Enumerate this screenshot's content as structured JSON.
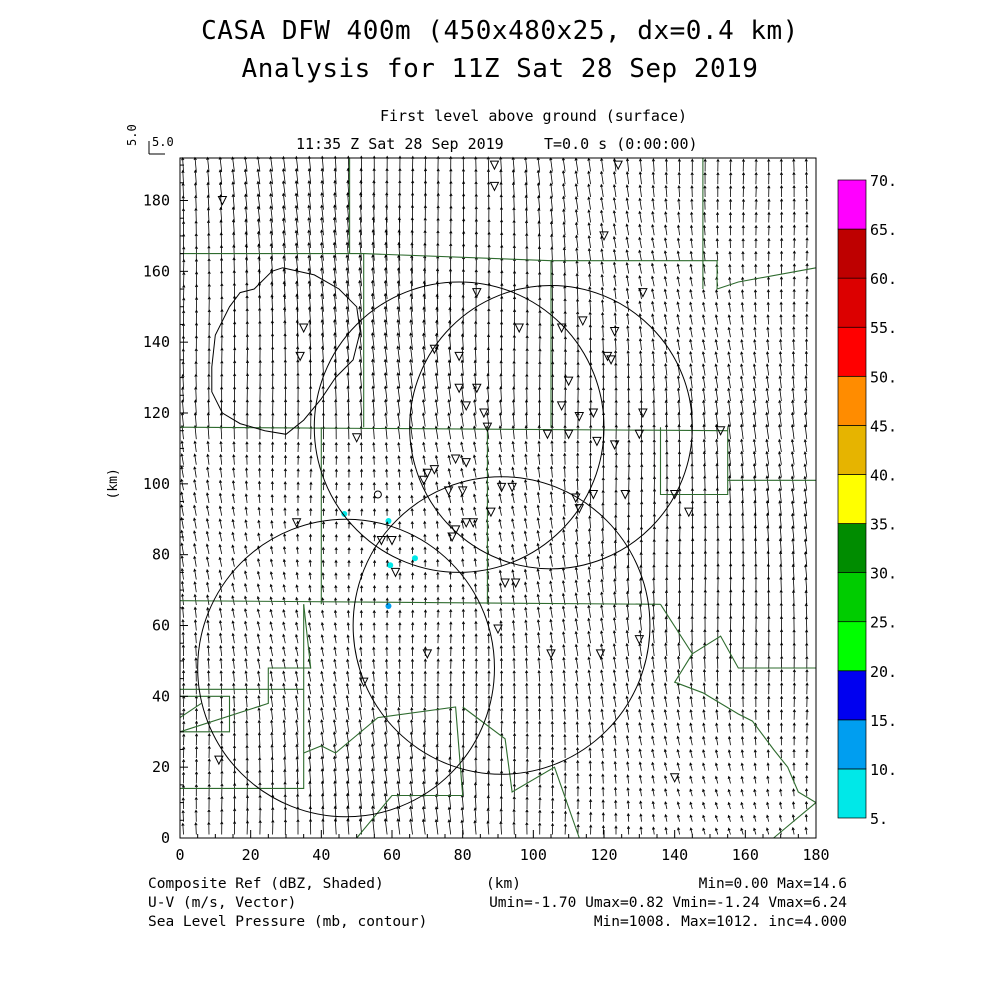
{
  "header": {
    "title_line1": "CASA DFW 400m (450x480x25, dx=0.4 km)",
    "title_line2": "Analysis for 11Z Sat 28 Sep 2019",
    "level": "First level above ground (surface)",
    "valid_time": "11:35 Z Sat 28 Sep 2019",
    "forecast_time": "T=0.0 s (0:00:00)",
    "ref_vector_label": "5.0",
    "ref_vector_label_vertical": "5.0"
  },
  "footer": {
    "field1_label": "Composite Ref (dBZ, Shaded)",
    "field1_stats": "Min=0.00 Max=14.6",
    "field2_label": "U-V (m/s, Vector)",
    "field2_stats": "Umin=-1.70 Umax=0.82 Vmin=-1.24 Vmax=6.24",
    "field3_label": "Sea Level Pressure (mb, contour)",
    "field3_stats": "Min=1008. Max=1012. inc=4.000",
    "x_unit_label": "(km)"
  },
  "chart_data": {
    "type": "map",
    "xlabel": "(km)",
    "ylabel": "(km)",
    "xlim": [
      0,
      180
    ],
    "ylim": [
      0,
      192
    ],
    "x_ticks": [
      0,
      20,
      40,
      60,
      80,
      100,
      120,
      140,
      160,
      180
    ],
    "y_ticks": [
      0,
      20,
      40,
      60,
      80,
      100,
      120,
      140,
      160,
      180
    ],
    "colorbar": {
      "label_values": [
        "5.",
        "10.",
        "15.",
        "20.",
        "25.",
        "30.",
        "35.",
        "40.",
        "45.",
        "50.",
        "55.",
        "60.",
        "65.",
        "70."
      ],
      "colors": [
        "#00e8e8",
        "#009ef0",
        "#0000f0",
        "#00ff00",
        "#00cc00",
        "#008c00",
        "#ffff00",
        "#e6b400",
        "#ff8c00",
        "#ff0000",
        "#dc0000",
        "#be0000",
        "#ff00ff"
      ]
    },
    "wind_field": {
      "description_free": true,
      "dominant_direction": "southerly",
      "spacing_km": 3.6
    },
    "radar_echoes": [
      {
        "x": 46.5,
        "y": 91.5,
        "dbz": 7
      },
      {
        "x": 59.0,
        "y": 89.5,
        "dbz": 9
      },
      {
        "x": 59.5,
        "y": 77.0,
        "dbz": 8
      },
      {
        "x": 66.5,
        "y": 79.0,
        "dbz": 8
      },
      {
        "x": 59.0,
        "y": 65.5,
        "dbz": 10
      }
    ],
    "radar_range_rings": [
      {
        "x": 79,
        "y": 116,
        "r": 41
      },
      {
        "x": 105,
        "y": 116,
        "r": 40
      },
      {
        "x": 91,
        "y": 60,
        "r": 42
      },
      {
        "x": 47,
        "y": 48,
        "r": 42
      }
    ],
    "stations": [
      [
        89,
        190
      ],
      [
        89,
        184
      ],
      [
        124,
        190
      ],
      [
        12,
        180
      ],
      [
        120,
        170
      ],
      [
        84,
        154
      ],
      [
        131,
        154
      ],
      [
        108,
        144
      ],
      [
        114,
        146
      ],
      [
        123,
        143
      ],
      [
        35,
        144
      ],
      [
        34,
        136
      ],
      [
        96,
        144
      ],
      [
        72,
        138
      ],
      [
        79,
        136
      ],
      [
        121,
        136
      ],
      [
        110,
        129
      ],
      [
        122,
        135
      ],
      [
        79,
        127
      ],
      [
        84,
        127
      ],
      [
        81,
        122
      ],
      [
        86,
        120
      ],
      [
        108,
        122
      ],
      [
        113,
        119
      ],
      [
        117,
        120
      ],
      [
        110,
        114
      ],
      [
        131,
        120
      ],
      [
        87,
        116
      ],
      [
        104,
        114
      ],
      [
        118,
        112
      ],
      [
        123,
        111
      ],
      [
        130,
        114
      ],
      [
        153,
        115
      ],
      [
        50,
        113
      ],
      [
        78,
        107
      ],
      [
        81,
        106
      ],
      [
        70,
        103
      ],
      [
        72,
        104
      ],
      [
        69,
        101
      ],
      [
        80,
        98
      ],
      [
        76,
        98
      ],
      [
        91,
        99
      ],
      [
        94,
        99
      ],
      [
        112,
        96
      ],
      [
        117,
        97
      ],
      [
        113,
        93
      ],
      [
        126,
        97
      ],
      [
        140,
        97
      ],
      [
        144,
        92
      ],
      [
        33,
        89
      ],
      [
        81,
        89
      ],
      [
        78,
        87
      ],
      [
        77,
        85
      ],
      [
        88,
        92
      ],
      [
        83,
        89
      ],
      [
        60,
        84
      ],
      [
        57,
        84
      ],
      [
        61,
        75
      ],
      [
        95,
        72
      ],
      [
        92,
        72
      ],
      [
        90,
        59
      ],
      [
        130,
        56
      ],
      [
        70,
        52
      ],
      [
        119,
        52
      ],
      [
        105,
        52
      ],
      [
        52,
        44
      ],
      [
        140,
        17
      ],
      [
        11,
        22
      ]
    ],
    "boundaries": [
      [
        [
          0,
          116
        ],
        [
          155,
          115
        ]
      ],
      [
        [
          0,
          67
        ],
        [
          136,
          66
        ]
      ],
      [
        [
          48,
          192
        ],
        [
          48,
          165
        ]
      ],
      [
        [
          0,
          165
        ],
        [
          48,
          165
        ]
      ],
      [
        [
          48,
          165
        ],
        [
          52,
          165
        ],
        [
          52,
          116
        ]
      ],
      [
        [
          52,
          165
        ],
        [
          105,
          163
        ],
        [
          152,
          163
        ],
        [
          152,
          155
        ],
        [
          158,
          157
        ],
        [
          180,
          161
        ]
      ],
      [
        [
          105,
          163
        ],
        [
          105,
          116
        ]
      ],
      [
        [
          148,
          192
        ],
        [
          148,
          155
        ]
      ],
      [
        [
          40,
          116
        ],
        [
          40,
          66
        ]
      ],
      [
        [
          87,
          116
        ],
        [
          87,
          66
        ]
      ],
      [
        [
          136,
          116
        ],
        [
          136,
          97
        ],
        [
          155,
          97
        ],
        [
          155,
          101
        ],
        [
          180,
          101
        ]
      ],
      [
        [
          155,
          116
        ],
        [
          155,
          101
        ]
      ],
      [
        [
          35,
          66
        ],
        [
          35,
          14
        ],
        [
          0,
          14
        ]
      ],
      [
        [
          0,
          42
        ],
        [
          35,
          42
        ]
      ],
      [
        [
          35,
          66
        ],
        [
          37,
          48
        ],
        [
          25,
          48
        ],
        [
          25,
          38
        ],
        [
          0,
          30
        ]
      ],
      [
        [
          35,
          24
        ],
        [
          40,
          26
        ],
        [
          44,
          24
        ],
        [
          56,
          34
        ],
        [
          78,
          37
        ],
        [
          80,
          12
        ],
        [
          60,
          12
        ],
        [
          55,
          6
        ],
        [
          50,
          0
        ]
      ],
      [
        [
          80,
          37
        ],
        [
          92,
          28
        ],
        [
          94,
          13
        ],
        [
          106,
          20
        ],
        [
          113,
          0
        ]
      ],
      [
        [
          136,
          66
        ],
        [
          145,
          52
        ],
        [
          153,
          57
        ],
        [
          158,
          48
        ],
        [
          180,
          48
        ]
      ],
      [
        [
          145,
          52
        ],
        [
          140,
          44
        ],
        [
          148,
          41
        ],
        [
          158,
          35
        ],
        [
          162,
          33
        ],
        [
          168,
          25
        ],
        [
          172,
          20
        ],
        [
          175,
          13
        ],
        [
          180,
          10
        ]
      ],
      [
        [
          180,
          10
        ],
        [
          168,
          0
        ]
      ],
      [
        [
          0,
          34
        ],
        [
          6,
          38
        ]
      ],
      [
        [
          0,
          40
        ],
        [
          14,
          40
        ],
        [
          14,
          30
        ],
        [
          0,
          30
        ]
      ]
    ],
    "pressure_contour": [
      [
        29,
        161
      ],
      [
        38,
        159
      ],
      [
        45,
        155
      ],
      [
        50,
        150
      ],
      [
        51,
        143
      ],
      [
        49,
        135
      ],
      [
        44,
        130
      ],
      [
        40,
        124
      ],
      [
        35,
        118
      ],
      [
        30,
        114
      ],
      [
        24,
        115
      ],
      [
        17,
        117
      ],
      [
        12,
        120
      ],
      [
        9,
        126
      ],
      [
        9,
        133
      ],
      [
        10,
        142
      ],
      [
        14,
        150
      ],
      [
        17,
        154
      ],
      [
        21,
        155
      ],
      [
        26,
        160
      ],
      [
        29,
        161
      ]
    ]
  }
}
